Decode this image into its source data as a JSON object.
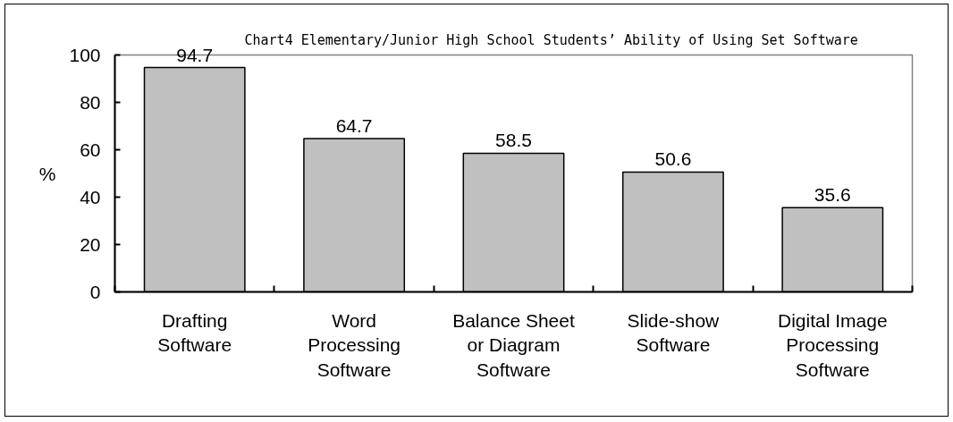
{
  "chart_data": {
    "type": "bar",
    "title": "Chart4 Elementary/Junior High School Students’ Ability of Using Set Software",
    "ylabel": "%",
    "categories": [
      "Drafting Software",
      "Word Processing Software",
      "Balance Sheet or Diagram Software",
      "Slide-show Software",
      "Digital Image Processing Software"
    ],
    "values": [
      94.7,
      64.7,
      58.5,
      50.6,
      35.6
    ],
    "color": "#c0c0c0",
    "ylim": [
      0,
      100
    ],
    "yticks": [
      0,
      20,
      40,
      60,
      80,
      100
    ],
    "data_labels": true
  }
}
